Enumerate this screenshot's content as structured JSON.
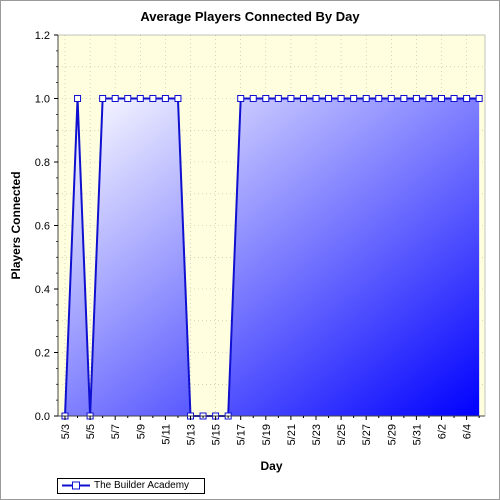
{
  "chart_data": {
    "type": "area",
    "title": "Average Players Connected By Day",
    "xlabel": "Day",
    "ylabel": "Players Connected",
    "ylim": [
      0,
      1.2
    ],
    "yticks": [
      "0.0",
      "0.2",
      "0.4",
      "0.6",
      "0.8",
      "1.0",
      "1.2"
    ],
    "xtick_labels": [
      "5/3",
      "5/5",
      "5/7",
      "5/9",
      "5/11",
      "5/13",
      "5/15",
      "5/17",
      "5/19",
      "5/21",
      "5/23",
      "5/25",
      "5/27",
      "5/29",
      "5/31",
      "6/2",
      "6/4"
    ],
    "x": [
      "5/3",
      "5/4",
      "5/5",
      "5/6",
      "5/7",
      "5/8",
      "5/9",
      "5/10",
      "5/11",
      "5/12",
      "5/13",
      "5/14",
      "5/15",
      "5/16",
      "5/17",
      "5/18",
      "5/19",
      "5/20",
      "5/21",
      "5/22",
      "5/23",
      "5/24",
      "5/25",
      "5/26",
      "5/27",
      "5/28",
      "5/29",
      "5/30",
      "5/31",
      "6/1",
      "6/2",
      "6/3",
      "6/4",
      "6/5"
    ],
    "series": [
      {
        "name": "The Builder Academy",
        "values": [
          0,
          1,
          0,
          1,
          1,
          1,
          1,
          1,
          1,
          1,
          0,
          0,
          0,
          0,
          1,
          1,
          1,
          1,
          1,
          1,
          1,
          1,
          1,
          1,
          1,
          1,
          1,
          1,
          1,
          1,
          1,
          1,
          1,
          1
        ]
      }
    ],
    "grid": true,
    "legend": "bottom-left",
    "colors": {
      "line": "#1010d0",
      "fill_light": "#ffffff",
      "fill_dark": "#0000ff",
      "plot_background": "#ffffe0",
      "grid": "#b8b8a0"
    }
  }
}
